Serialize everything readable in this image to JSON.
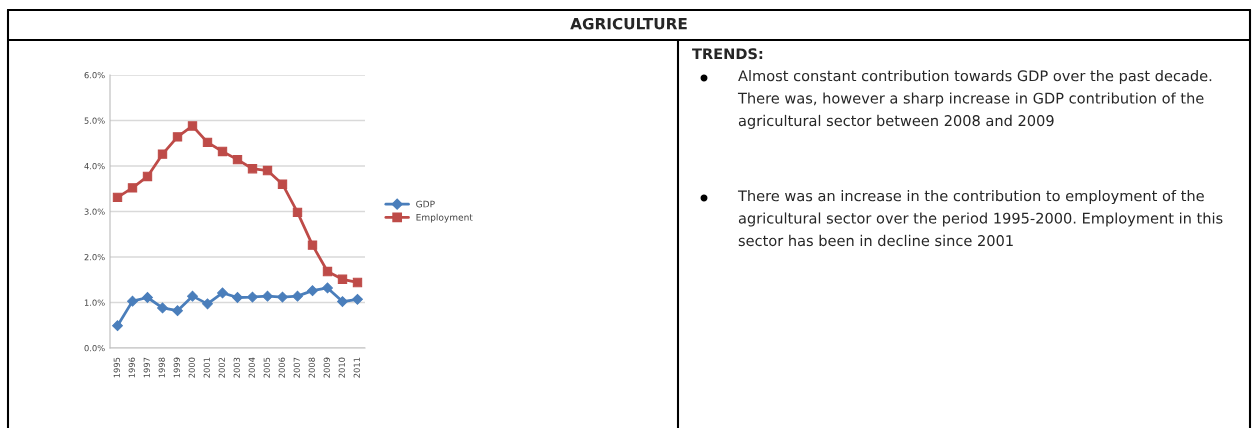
{
  "chart_data": {
    "type": "line",
    "title": "AGRICULTURE",
    "categories": [
      "1995",
      "1996",
      "1997",
      "1998",
      "1999",
      "2000",
      "2001",
      "2002",
      "2003",
      "2004",
      "2005",
      "2006",
      "2007",
      "2008",
      "2009",
      "2010",
      "2011"
    ],
    "series": [
      {
        "name": "GDP",
        "color": "#4a7ebb",
        "marker": "diamond",
        "values": [
          0.49,
          1.03,
          1.11,
          0.88,
          0.82,
          1.14,
          0.97,
          1.21,
          1.11,
          1.12,
          1.14,
          1.12,
          1.14,
          1.26,
          1.32,
          1.02,
          1.07
        ]
      },
      {
        "name": "Employment",
        "color": "#be4b48",
        "marker": "square",
        "values": [
          3.31,
          3.52,
          3.77,
          4.26,
          4.64,
          4.88,
          4.52,
          4.32,
          4.14,
          3.94,
          3.9,
          3.6,
          2.98,
          2.26,
          1.68,
          1.51,
          1.44
        ]
      }
    ],
    "ylim": [
      0,
      6
    ],
    "yticks": [
      {
        "value": 0,
        "label": "0.0%"
      },
      {
        "value": 1,
        "label": "1.0%"
      },
      {
        "value": 2,
        "label": "2.0%"
      },
      {
        "value": 3,
        "label": "3.0%"
      },
      {
        "value": 4,
        "label": "4.0%"
      },
      {
        "value": 5,
        "label": "5.0%"
      },
      {
        "value": 6,
        "label": "6.0%"
      }
    ],
    "grid": "y",
    "legend": "right",
    "annotations": [
      "TRENDS:",
      "Almost constant contribution towards GDP over the past decade. There was, however a sharp increase in GDP contribution of the agricultural sector between 2008 and 2009",
      "There was an increase in the contribution to employment of the agricultural sector over the period 1995-2000. Employment in this sector has been in decline since 2001"
    ]
  }
}
